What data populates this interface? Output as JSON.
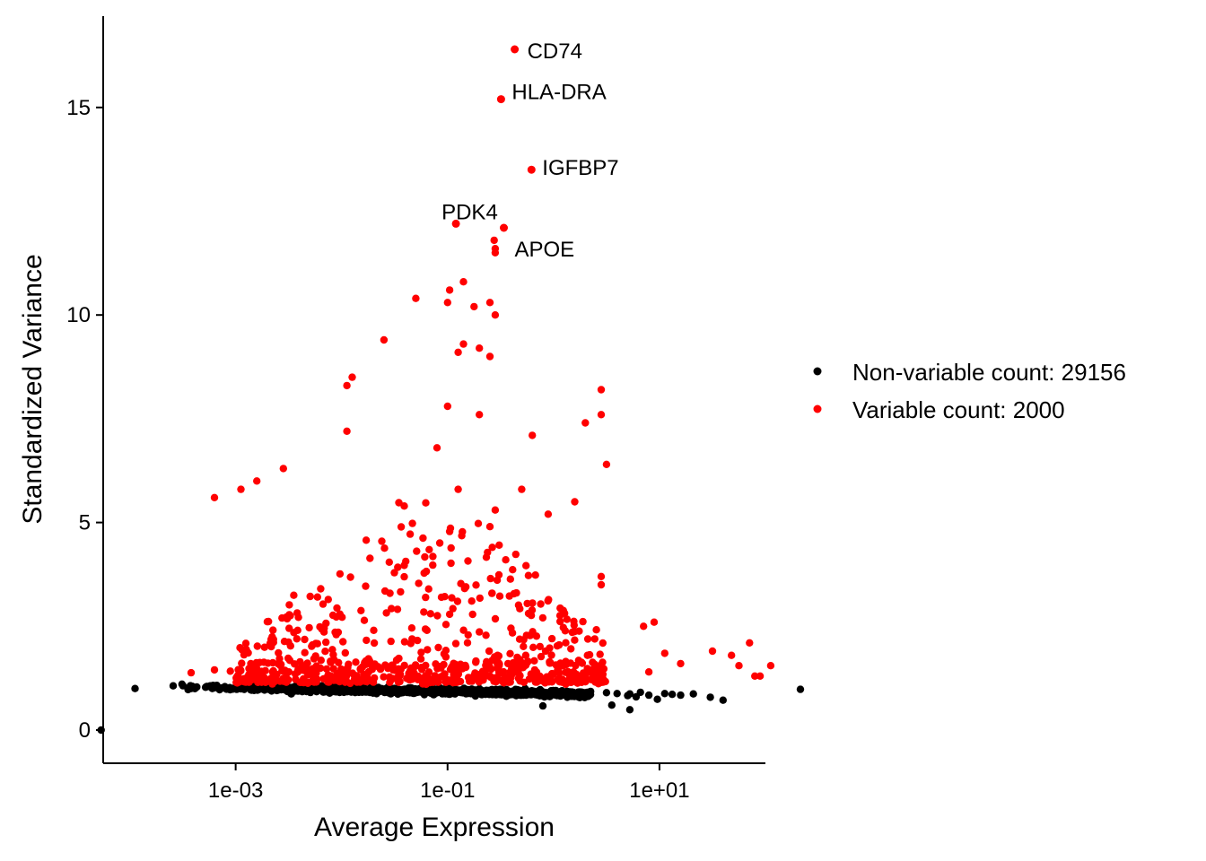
{
  "chart_data": {
    "type": "scatter",
    "xlabel": "Average Expression",
    "ylabel": "Standardized Variance",
    "x_scale": "log10",
    "xlim": [
      5.62e-05,
      100
    ],
    "ylim": [
      -0.8,
      17.2
    ],
    "x_ticks": [
      {
        "value": 0.001,
        "label": "1e-03"
      },
      {
        "value": 0.1,
        "label": "1e-01"
      },
      {
        "value": 10,
        "label": "1e+01"
      }
    ],
    "y_ticks": [
      {
        "value": 0,
        "label": "0"
      },
      {
        "value": 5,
        "label": "5"
      },
      {
        "value": 10,
        "label": "10"
      },
      {
        "value": 15,
        "label": "15"
      }
    ],
    "grid": false,
    "legend_position": "right",
    "series": [
      {
        "name": "Non-variable count: 29156",
        "color": "#000000"
      },
      {
        "name": "Variable count: 2000",
        "color": "#ff0000"
      }
    ],
    "labeled_points": [
      {
        "gene": "CD74",
        "x": 0.43,
        "y": 16.4
      },
      {
        "gene": "HLA-DRA",
        "x": 0.32,
        "y": 15.2
      },
      {
        "gene": "IGFBP7",
        "x": 0.62,
        "y": 13.5
      },
      {
        "gene": "PDK4",
        "x": 0.12,
        "y": 12.2
      },
      {
        "gene": "APOE",
        "x": 0.34,
        "y": 12.1
      }
    ]
  }
}
